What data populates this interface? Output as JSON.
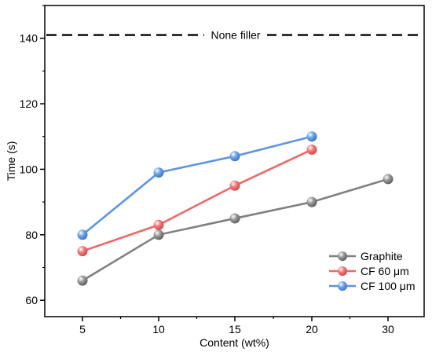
{
  "chart_data": {
    "type": "line",
    "xlabel": "Content (wt%)",
    "ylabel": "Time (s)",
    "x_categories": [
      "5",
      "10",
      "15",
      "20",
      "30"
    ],
    "ylim": [
      55,
      150
    ],
    "y_ticks": [
      60,
      80,
      100,
      120,
      140
    ],
    "grid": false,
    "legend_position": "bottom-right",
    "reference_line": {
      "label": "None filler",
      "value": 141
    },
    "series": [
      {
        "name": "Graphite",
        "color": "#808080",
        "x": [
          "5",
          "10",
          "15",
          "20",
          "30"
        ],
        "values": [
          66,
          80,
          85,
          90,
          97
        ]
      },
      {
        "name": "CF 60 μm",
        "color": "#f06767",
        "x": [
          "5",
          "10",
          "15",
          "20"
        ],
        "values": [
          75,
          83,
          95,
          106
        ]
      },
      {
        "name": "CF 100 μm",
        "color": "#5b95e0",
        "x": [
          "5",
          "10",
          "15",
          "20"
        ],
        "values": [
          80,
          99,
          104,
          110
        ]
      }
    ]
  }
}
